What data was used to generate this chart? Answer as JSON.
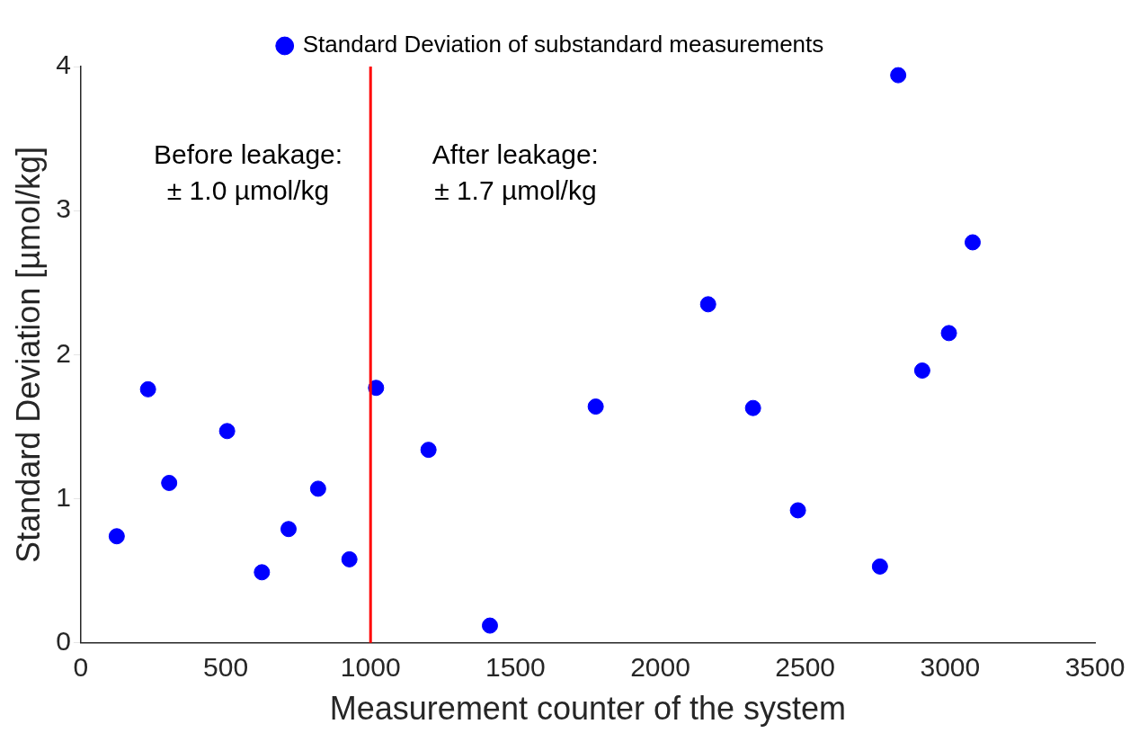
{
  "chart_data": {
    "type": "scatter",
    "xlabel": "Measurement counter of the system",
    "ylabel": "Standard Deviation [µmol/kg]",
    "series": [
      {
        "name": "Standard Deviation of substandard measurements",
        "color": "#0000ff",
        "x": [
          124,
          232,
          305,
          505,
          625,
          717,
          819,
          927,
          1019,
          1200,
          1412,
          1777,
          2165,
          2320,
          2475,
          2758,
          2821,
          2904,
          2996,
          3078
        ],
        "values": [
          0.74,
          1.76,
          1.11,
          1.47,
          0.49,
          0.79,
          1.07,
          0.58,
          1.77,
          1.34,
          0.12,
          1.64,
          2.35,
          1.63,
          0.92,
          0.53,
          3.94,
          1.89,
          2.15,
          2.78
        ]
      }
    ],
    "xlim": [
      0,
      3500
    ],
    "xticks": [
      0,
      500,
      1000,
      1500,
      2000,
      2500,
      3000,
      3500
    ],
    "ylim": [
      0,
      4
    ],
    "yticks": [
      0,
      1,
      2,
      3,
      4
    ],
    "ref_lines": [
      {
        "axis": "x",
        "value": 1000,
        "color": "#ff0000"
      }
    ],
    "annotations": [
      "Before leakage:\n± 1.0 µmol/kg",
      "After leakage:\n± 1.7 µmol/kg"
    ],
    "legend": "top",
    "marker": "circle",
    "grid": false
  }
}
